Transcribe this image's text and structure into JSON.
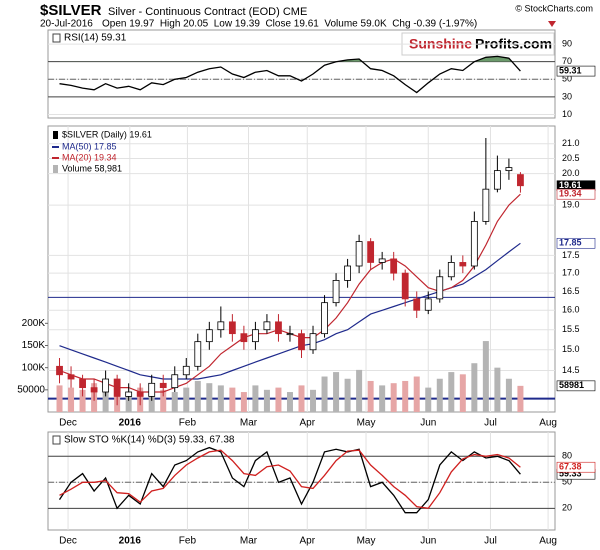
{
  "header": {
    "symbol": "$SILVER",
    "subtitle": "Silver - Continuous Contract (EOD) CME",
    "copyright": "© StockCharts.com",
    "date": "20-Jul-2016",
    "quote": "Open 19.97  High 20.05  Low 19.39  Close 19.61  Volume 59.0K  Chg -0.39 (-1.97%)",
    "logo": [
      "Sunshine",
      "Profits.com"
    ]
  },
  "chart_data": [
    {
      "type": "line",
      "legend": "RSI(14) 59.31",
      "xlim": [
        -1,
        43
      ],
      "ylim": [
        6,
        106
      ],
      "yticks": [
        90,
        70,
        50,
        30,
        10
      ],
      "hlines": [
        70,
        30
      ],
      "dashlines": [
        50
      ],
      "fill_above": 70,
      "fill_color": "#6b9a6b",
      "series": [
        {
          "color": "#000000",
          "values": [
            45,
            43,
            40,
            38,
            45,
            40,
            42,
            38,
            46,
            44,
            50,
            52,
            58,
            62,
            64,
            56,
            52,
            58,
            60,
            54,
            54,
            48,
            56,
            66,
            70,
            72,
            73,
            62,
            60,
            54,
            44,
            35,
            46,
            56,
            62,
            60,
            70,
            75,
            76,
            74,
            59.31
          ]
        }
      ]
    },
    {
      "type": "candlestick",
      "legend": "$SILVER (Daily) 19.61",
      "volume_legend": "Volume 58,981",
      "xlim": [
        -1,
        43
      ],
      "log": true,
      "ylim": [
        13.55,
        21.62
      ],
      "yticks": [
        {
          "value": 21,
          "label": "21.0"
        },
        20.5,
        {
          "value": 20,
          "label": "20.0"
        },
        {
          "value": 19,
          "label": "19.0"
        },
        17.5,
        {
          "value": 17,
          "label": "17.0"
        },
        16.5,
        {
          "value": 16,
          "label": "16.0"
        },
        15.5,
        {
          "value": 15,
          "label": "15.0"
        },
        14.5
      ],
      "xticks": [
        {
          "value": 0.74,
          "label": "Dec"
        },
        {
          "value": 6.1,
          "label": "2016"
        },
        {
          "value": 11.1,
          "label": "Feb"
        },
        {
          "value": 16.4,
          "label": "Mar"
        },
        {
          "value": 21.5,
          "label": "Apr"
        },
        {
          "value": 26.6,
          "label": "May"
        },
        {
          "value": 32,
          "label": "Jun"
        },
        {
          "value": 37.4,
          "label": "Jul"
        },
        {
          "value": 42.4,
          "label": "Aug"
        }
      ],
      "hlines": [
        16.34,
        13.85
      ],
      "up_color": "#000000",
      "down_color": "#c0262f",
      "open": [
        14.6,
        14.4,
        14.3,
        14.1,
        14.0,
        14.3,
        13.9,
        14.0,
        13.9,
        14.2,
        14.1,
        14.4,
        14.6,
        15.2,
        15.5,
        15.7,
        15.4,
        15.2,
        15.5,
        15.7,
        15.4,
        15.4,
        15.0,
        15.4,
        16.2,
        16.8,
        17.2,
        17.9,
        17.3,
        17.4,
        17.0,
        16.3,
        16.0,
        16.3,
        16.9,
        17.3,
        17.2,
        18.5,
        19.5,
        20.1,
        19.97
      ],
      "high": [
        14.8,
        14.6,
        14.4,
        14.3,
        14.5,
        14.4,
        14.2,
        14.2,
        14.4,
        14.4,
        14.6,
        14.8,
        15.4,
        15.7,
        16.1,
        15.9,
        15.6,
        15.7,
        15.9,
        15.9,
        15.6,
        15.5,
        15.6,
        16.4,
        17.0,
        17.4,
        18.1,
        18.0,
        17.6,
        17.6,
        17.1,
        16.5,
        16.5,
        17.1,
        17.5,
        17.5,
        18.8,
        21.2,
        20.6,
        20.5,
        20.05
      ],
      "low": [
        14.2,
        14.1,
        13.9,
        13.8,
        13.9,
        13.7,
        13.8,
        13.7,
        13.8,
        13.9,
        14.0,
        14.3,
        14.5,
        15.0,
        15.3,
        15.2,
        15.0,
        15.0,
        15.4,
        15.2,
        15.2,
        14.8,
        14.9,
        15.3,
        16.1,
        16.6,
        17.0,
        17.1,
        17.1,
        16.8,
        16.1,
        15.8,
        15.9,
        16.2,
        16.8,
        17.0,
        17.1,
        18.4,
        19.4,
        19.8,
        19.39
      ],
      "close": [
        14.4,
        14.3,
        14.1,
        14.0,
        14.3,
        13.9,
        14.0,
        13.9,
        14.2,
        14.1,
        14.4,
        14.6,
        15.2,
        15.5,
        15.7,
        15.4,
        15.2,
        15.5,
        15.7,
        15.4,
        15.4,
        15.0,
        15.4,
        16.2,
        16.8,
        17.2,
        17.9,
        17.3,
        17.4,
        17.0,
        16.3,
        16.0,
        16.3,
        16.9,
        17.3,
        17.2,
        18.5,
        19.5,
        20.1,
        20.2,
        19.61
      ],
      "series": [
        {
          "name": "MA(50) 17.85",
          "color": "#1f2a8c",
          "values": [
            15.1,
            15.0,
            14.9,
            14.8,
            14.7,
            14.6,
            14.5,
            14.4,
            14.35,
            14.3,
            14.3,
            14.3,
            14.3,
            14.35,
            14.4,
            14.5,
            14.6,
            14.7,
            14.8,
            14.9,
            15.0,
            15.1,
            15.15,
            15.25,
            15.4,
            15.5,
            15.7,
            15.9,
            16.0,
            16.1,
            16.2,
            16.3,
            16.4,
            16.5,
            16.6,
            16.7,
            16.9,
            17.1,
            17.35,
            17.6,
            17.85
          ]
        },
        {
          "name": "MA(20) 19.34",
          "color": "#c0262f",
          "values": [
            14.5,
            14.4,
            14.3,
            14.3,
            14.2,
            14.1,
            14.1,
            14.0,
            14.0,
            14.0,
            14.1,
            14.2,
            14.4,
            14.6,
            14.9,
            15.1,
            15.3,
            15.4,
            15.4,
            15.5,
            15.4,
            15.3,
            15.3,
            15.5,
            15.8,
            16.2,
            16.7,
            17.1,
            17.3,
            17.4,
            17.2,
            16.9,
            16.6,
            16.5,
            16.6,
            16.8,
            17.2,
            17.8,
            18.5,
            19.0,
            19.34
          ]
        }
      ],
      "volume": [
        60000,
        55000,
        50000,
        65000,
        45000,
        70000,
        40000,
        55000,
        60000,
        50000,
        45000,
        55000,
        70000,
        65000,
        60000,
        55000,
        45000,
        60000,
        50000,
        55000,
        45000,
        60000,
        50000,
        80000,
        90000,
        75000,
        95000,
        70000,
        60000,
        65000,
        70000,
        80000,
        55000,
        75000,
        90000,
        85000,
        110000,
        160000,
        100000,
        75000,
        58981
      ],
      "volume_colors": [
        "#b4b4b4",
        "#e6a6a6"
      ],
      "y2lim": [
        0,
        645000
      ],
      "y2ticks": [
        {
          "value": 200000,
          "label": "200K"
        },
        {
          "value": 150000,
          "label": "150K"
        },
        {
          "value": 100000,
          "label": "100K"
        },
        50000
      ]
    },
    {
      "type": "line",
      "legend": "Slow STO %K(14) %D(3) 59.33, 67.38",
      "xlim": [
        -1,
        43
      ],
      "ylim": [
        -5,
        108
      ],
      "yticks": [
        80,
        50,
        20
      ],
      "hlines": [
        80,
        20
      ],
      "dashlines": [
        50
      ],
      "xticks": [
        {
          "value": 0.74,
          "label": "Dec"
        },
        {
          "value": 6.1,
          "label": "2016"
        },
        {
          "value": 11.1,
          "label": "Feb"
        },
        {
          "value": 16.4,
          "label": "Mar"
        },
        {
          "value": 21.5,
          "label": "Apr"
        },
        {
          "value": 26.6,
          "label": "May"
        },
        {
          "value": 32,
          "label": "Jun"
        },
        {
          "value": 37.4,
          "label": "Jul"
        },
        {
          "value": 42.4,
          "label": "Aug"
        }
      ],
      "series": [
        {
          "color": "#000000",
          "values": [
            30,
            50,
            60,
            40,
            55,
            20,
            35,
            25,
            60,
            45,
            70,
            75,
            85,
            90,
            85,
            55,
            45,
            75,
            85,
            50,
            55,
            25,
            50,
            85,
            88,
            85,
            88,
            45,
            50,
            35,
            15,
            15,
            30,
            70,
            85,
            75,
            85,
            78,
            80,
            75,
            59.33
          ]
        },
        {
          "color": "#d0201f",
          "values": [
            35,
            42,
            50,
            50,
            52,
            38,
            37,
            27,
            40,
            43,
            58,
            70,
            78,
            85,
            87,
            75,
            60,
            58,
            68,
            70,
            63,
            45,
            43,
            58,
            75,
            86,
            87,
            70,
            58,
            45,
            35,
            22,
            20,
            38,
            62,
            77,
            82,
            80,
            82,
            78,
            67.38
          ]
        }
      ]
    }
  ]
}
